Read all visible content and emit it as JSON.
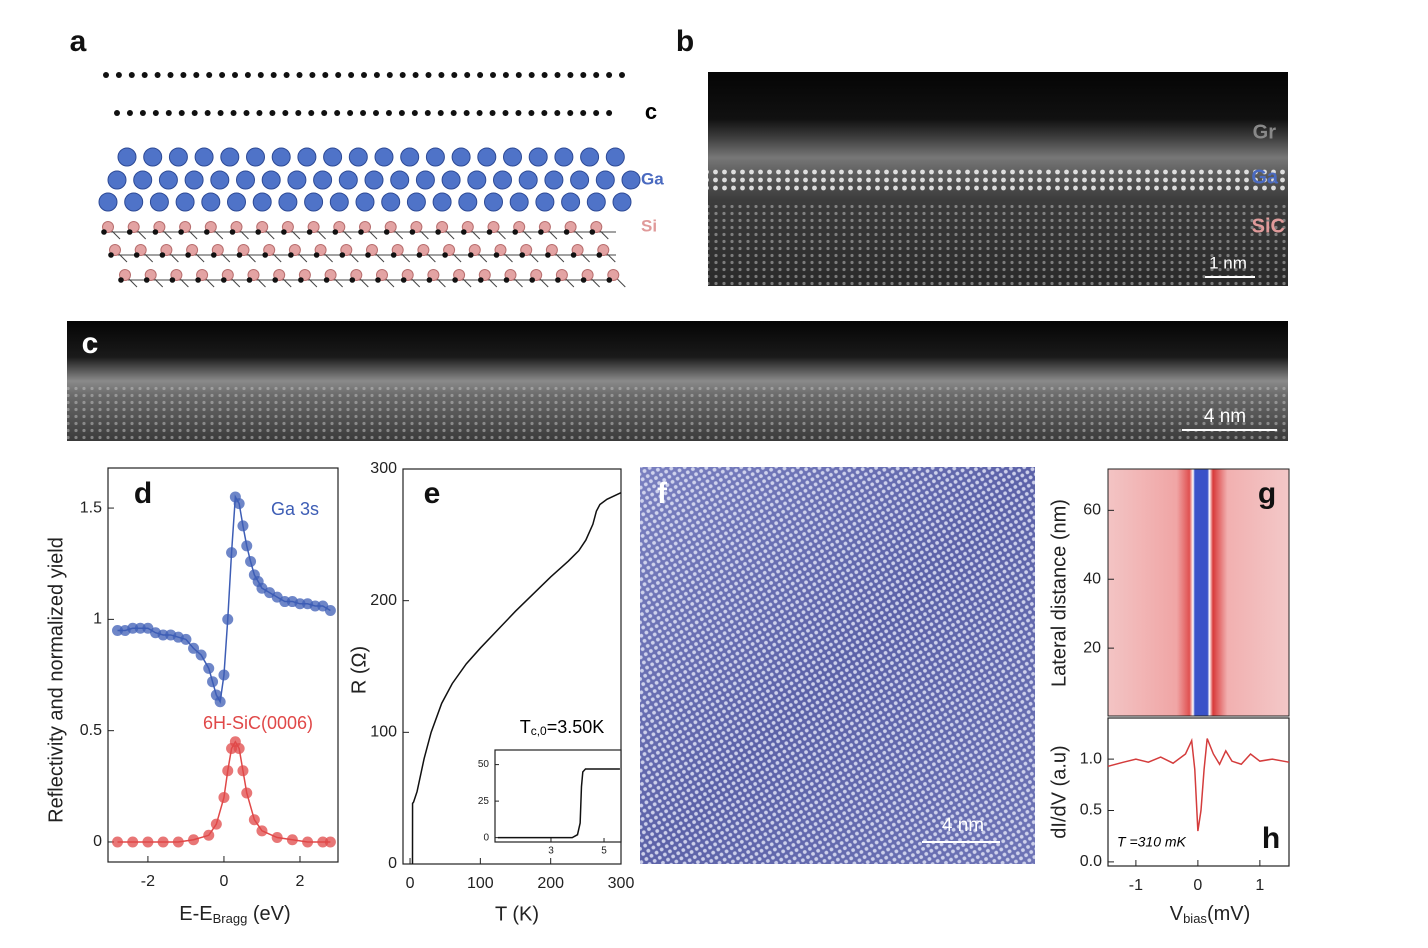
{
  "panel_labels": [
    "a",
    "b",
    "c",
    "d",
    "e",
    "f",
    "g",
    "h"
  ],
  "schematic": {
    "carbon": "c",
    "gallium": "Ga",
    "silicon": "Si"
  },
  "stem_cross_section": {
    "layers": [
      "Gr",
      "Ga",
      "SiC"
    ],
    "scale_bar": "1 nm"
  },
  "stem_wide": {
    "scale_bar": "4 nm"
  },
  "stm_image": {
    "scale_bar": "4 nm"
  },
  "chart_data": [
    {
      "type": "scatter",
      "y_label": "Reflectivity and normalized yield",
      "x_label": [
        "E-E",
        "Bragg",
        " (eV)"
      ],
      "xlim": [
        -3.05,
        3
      ],
      "xticks": [
        -2,
        0,
        2
      ],
      "ylim": [
        -0.09,
        1.68
      ],
      "yticks": [
        0,
        0.5,
        1,
        1.5
      ],
      "series": [
        {
          "name": "Ga 3s",
          "color": "#3d5db5",
          "x": [
            -2.8,
            -2.6,
            -2.4,
            -2.2,
            -2.0,
            -1.8,
            -1.6,
            -1.4,
            -1.2,
            -1.0,
            -0.8,
            -0.6,
            -0.4,
            -0.3,
            -0.2,
            -0.1,
            0.0,
            0.1,
            0.2,
            0.3,
            0.4,
            0.5,
            0.6,
            0.7,
            0.8,
            0.9,
            1.0,
            1.2,
            1.4,
            1.6,
            1.8,
            2.0,
            2.2,
            2.4,
            2.6,
            2.8
          ],
          "values": [
            0.95,
            0.95,
            0.96,
            0.96,
            0.96,
            0.94,
            0.93,
            0.93,
            0.92,
            0.91,
            0.87,
            0.84,
            0.78,
            0.72,
            0.66,
            0.63,
            0.75,
            1.0,
            1.3,
            1.55,
            1.52,
            1.42,
            1.33,
            1.26,
            1.2,
            1.17,
            1.14,
            1.12,
            1.1,
            1.08,
            1.08,
            1.07,
            1.07,
            1.06,
            1.06,
            1.04
          ]
        },
        {
          "name": "6H-SiC(0006)",
          "color": "#e04848",
          "x": [
            -2.8,
            -2.4,
            -2.0,
            -1.6,
            -1.2,
            -0.8,
            -0.4,
            -0.2,
            0.0,
            0.1,
            0.2,
            0.3,
            0.4,
            0.5,
            0.6,
            0.8,
            1.0,
            1.4,
            1.8,
            2.2,
            2.6,
            2.8
          ],
          "values": [
            0,
            0,
            0,
            0,
            0,
            0.01,
            0.03,
            0.08,
            0.2,
            0.32,
            0.42,
            0.45,
            0.42,
            0.32,
            0.22,
            0.1,
            0.05,
            0.02,
            0.01,
            0,
            0,
            0
          ]
        }
      ]
    },
    {
      "type": "line",
      "y_label": "R (Ω)",
      "x_label": "T (K)",
      "annotation": [
        "T",
        "c,0",
        "=3.50K"
      ],
      "xlim": [
        -10,
        300
      ],
      "xticks": [
        0,
        100,
        200,
        300
      ],
      "ylim": [
        0,
        300
      ],
      "yticks": [
        0,
        100,
        200,
        300
      ],
      "x": [
        3.5,
        3.6,
        5,
        10,
        20,
        30,
        45,
        60,
        80,
        100,
        125,
        150,
        175,
        200,
        225,
        240,
        250,
        260,
        265,
        270,
        280,
        300
      ],
      "series": [
        {
          "color": "#111111",
          "values": [
            0,
            46,
            47,
            55,
            80,
            100,
            122,
            137,
            152,
            164,
            178,
            192,
            205,
            218,
            230,
            238,
            246,
            258,
            268,
            273,
            277,
            282
          ]
        }
      ]
    },
    {
      "type": "line",
      "xlim": [
        0.89,
        5.64
      ],
      "xticks": [
        3,
        5
      ],
      "ylim": [
        -3,
        60
      ],
      "yticks": [
        0,
        25,
        50
      ],
      "x": [
        1,
        3.8,
        4.0,
        4.1,
        4.15,
        4.2,
        4.3,
        5.6
      ],
      "series": [
        {
          "color": "#111111",
          "values": [
            0,
            0,
            2,
            10,
            35,
            45,
            47,
            47
          ]
        }
      ]
    },
    {
      "type": "heatmap",
      "y_label": "Lateral distance (nm)",
      "ylim": [
        0.3,
        72
      ],
      "yticks": [
        20,
        40,
        60
      ]
    },
    {
      "type": "line",
      "y_label": "dI/dV (a.u)",
      "x_label": [
        "V",
        "bias",
        "(mV)"
      ],
      "annotation": "T =310 mK",
      "xlim": [
        -1.45,
        1.47
      ],
      "xticks": [
        -1,
        0,
        1
      ],
      "ylim": [
        -0.04,
        1.4
      ],
      "yticks": [
        {
          "value": 0,
          "label": "0.0"
        },
        0.5,
        {
          "value": 1,
          "label": "1.0"
        }
      ],
      "x": [
        -1.45,
        -1.2,
        -1.0,
        -0.8,
        -0.6,
        -0.4,
        -0.2,
        -0.1,
        -0.05,
        0,
        0.05,
        0.1,
        0.15,
        0.25,
        0.35,
        0.45,
        0.55,
        0.7,
        0.85,
        1.0,
        1.2,
        1.47
      ],
      "series": [
        {
          "color": "#d43c3c",
          "values": [
            0.93,
            0.97,
            1.0,
            0.97,
            1.02,
            0.96,
            1.05,
            1.18,
            0.9,
            0.3,
            0.5,
            0.9,
            1.2,
            1.05,
            0.95,
            1.08,
            0.98,
            0.95,
            1.05,
            0.98,
            1.0,
            0.97
          ]
        }
      ]
    }
  ]
}
